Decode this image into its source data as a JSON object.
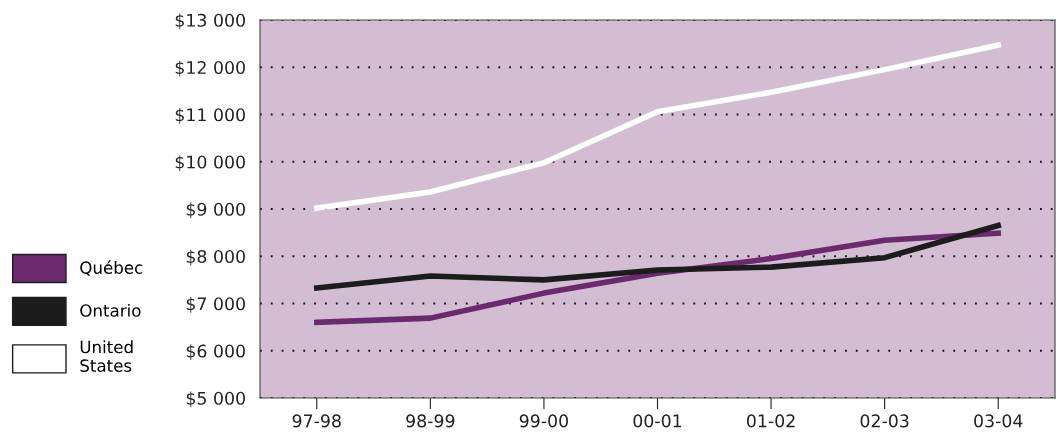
{
  "chart_data": {
    "type": "line",
    "categories": [
      "97-98",
      "98-99",
      "99-00",
      "00-01",
      "01-02",
      "02-03",
      "03-04"
    ],
    "series": [
      {
        "name": "Québec",
        "color": "#6b2a6e",
        "values": [
          6600,
          6690,
          7220,
          7640,
          7950,
          8340,
          8490
        ]
      },
      {
        "name": "Ontario",
        "color": "#1c1c1c",
        "values": [
          7330,
          7580,
          7500,
          7710,
          7770,
          7970,
          8650
        ]
      },
      {
        "name": "United States",
        "color": "#ffffff",
        "values": [
          9020,
          9360,
          9980,
          11060,
          11470,
          11950,
          12470
        ]
      }
    ],
    "ylim": [
      5000,
      13000
    ],
    "yticks": [
      {
        "value": 5000,
        "label": "$5 000"
      },
      {
        "value": 6000,
        "label": "$6 000"
      },
      {
        "value": 7000,
        "label": "$7 000"
      },
      {
        "value": 8000,
        "label": "$8 000"
      },
      {
        "value": 9000,
        "label": "$9 000"
      },
      {
        "value": 10000,
        "label": "$10 000"
      },
      {
        "value": 11000,
        "label": "$11 000"
      },
      {
        "value": 12000,
        "label": "$12 000"
      },
      {
        "value": 13000,
        "label": "$13 000"
      }
    ],
    "grid": "y",
    "legend": "left",
    "line_style": "solid",
    "marker": "none"
  }
}
